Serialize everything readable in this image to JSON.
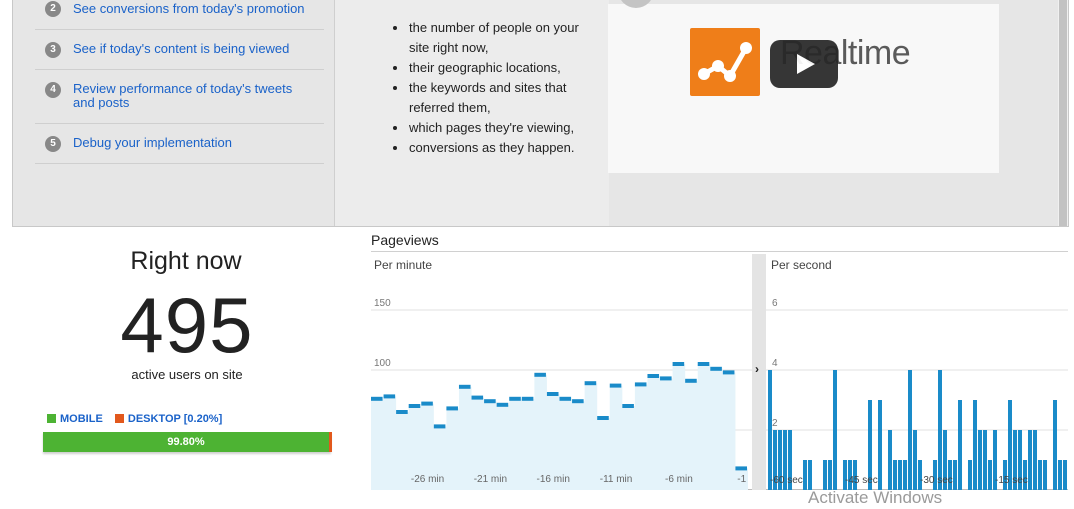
{
  "steps": [
    {
      "num": "2",
      "label": "See conversions from today's promotion"
    },
    {
      "num": "3",
      "label": "See if today's content is being viewed"
    },
    {
      "num": "4",
      "label": "Review performance of today's tweets and posts"
    },
    {
      "num": "5",
      "label": "Debug your implementation"
    }
  ],
  "features": [
    "the number of people on your site right now,",
    "their geographic locations,",
    "the keywords and sites that referred them,",
    "which pages they're viewing,",
    "conversions as they happen."
  ],
  "video": {
    "title": "Realtime",
    "logo_icon": "analytics-logo-icon",
    "play_icon": "play-icon"
  },
  "right_now": {
    "title": "Right now",
    "count": "495",
    "subtitle": "active users on site",
    "mobile_label": "MOBILE",
    "desktop_label": "DESKTOP [0.20%]",
    "mobile_percent_label": "99.80%",
    "mobile_fraction": 0.998,
    "colors": {
      "mobile": "#4db333",
      "desktop": "#e2581c"
    }
  },
  "pageviews": {
    "title": "Pageviews",
    "per_minute_label": "Per minute",
    "per_second_label": "Per second",
    "expand_icon": "chevron-right-icon"
  },
  "chart_data": [
    {
      "type": "area",
      "title": "Per minute",
      "x": [
        -30,
        -29,
        -28,
        -27,
        -26,
        -25,
        -24,
        -23,
        -22,
        -21,
        -20,
        -19,
        -18,
        -17,
        -16,
        -15,
        -14,
        -13,
        -12,
        -11,
        -10,
        -9,
        -8,
        -7,
        -6,
        -5,
        -4,
        -3,
        -2,
        -1
      ],
      "x_tick_labels": [
        "-26 min",
        "-21 min",
        "-16 min",
        "-11 min",
        "-6 min",
        "-1"
      ],
      "x_tick_values": [
        -26,
        -21,
        -16,
        -11,
        -6,
        -1
      ],
      "y_tick_labels": [
        "150",
        "100",
        "50"
      ],
      "y_tick_values": [
        150,
        100,
        50
      ],
      "ylim": [
        0,
        175
      ],
      "series": [
        {
          "values": [
            76,
            78,
            65,
            70,
            72,
            53,
            68,
            86,
            77,
            74,
            71,
            76,
            76,
            96,
            80,
            76,
            74,
            89,
            60,
            87,
            70,
            88,
            95,
            93,
            105,
            91,
            105,
            101,
            98,
            18
          ]
        }
      ],
      "color": "#1a8bc9",
      "fill": "#e4f3fa"
    },
    {
      "type": "bar",
      "title": "Per second",
      "x_tick_labels": [
        "-60 sec",
        "-45 sec",
        "-30 sec",
        "-15 sec"
      ],
      "x_tick_values": [
        -60,
        -45,
        -30,
        -15
      ],
      "y_tick_labels": [
        "6",
        "4",
        "2"
      ],
      "y_tick_values": [
        6,
        4,
        2
      ],
      "ylim": [
        0,
        7
      ],
      "values": [
        4,
        2,
        2,
        2,
        2,
        0,
        0,
        1,
        1,
        0,
        0,
        1,
        1,
        4,
        0,
        1,
        1,
        1,
        0,
        0,
        3,
        0,
        3,
        0,
        2,
        1,
        1,
        1,
        4,
        2,
        1,
        0,
        0,
        1,
        4,
        2,
        1,
        1,
        3,
        0,
        1,
        3,
        2,
        2,
        1,
        2,
        0,
        1,
        3,
        2,
        2,
        1,
        2,
        2,
        1,
        1,
        0,
        3,
        1,
        1
      ]
    }
  ],
  "watermark": "Activate Windows"
}
